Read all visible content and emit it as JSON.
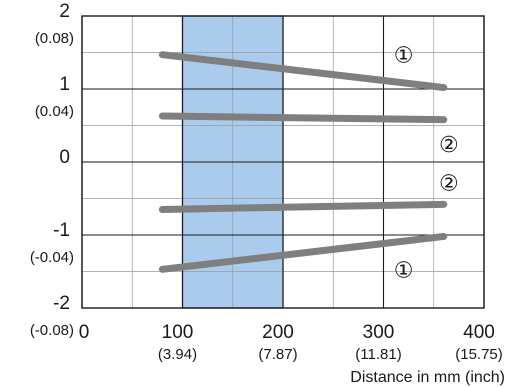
{
  "chart_data": {
    "type": "line",
    "xlabel": "Distance in mm (inch)",
    "ylabel": "",
    "xlim": [
      0,
      400
    ],
    "ylim": [
      -2,
      2
    ],
    "grid": true,
    "x_ticks": [
      {
        "value": 0,
        "label": "0",
        "sub": ""
      },
      {
        "value": 100,
        "label": "100",
        "sub": "(3.94)"
      },
      {
        "value": 200,
        "label": "200",
        "sub": "(7.87)"
      },
      {
        "value": 300,
        "label": "300",
        "sub": "(11.81)"
      },
      {
        "value": 400,
        "label": "400",
        "sub": "(15.75)"
      }
    ],
    "y_ticks": [
      {
        "value": 2,
        "label": "2",
        "sub": "(0.08)"
      },
      {
        "value": 1,
        "label": "1",
        "sub": "(0.04)"
      },
      {
        "value": 0,
        "label": "0",
        "sub": ""
      },
      {
        "value": -1,
        "label": "-1",
        "sub": "(-0.04)"
      },
      {
        "value": -2,
        "label": "-2",
        "sub": "(-0.08)"
      }
    ],
    "highlight_band": {
      "x_start": 100,
      "x_end": 200,
      "color": "#aacbec"
    },
    "series": [
      {
        "label": "①",
        "color": "#7f7f7f",
        "x": [
          80,
          360
        ],
        "y": [
          1.47,
          1.02
        ],
        "label_at": {
          "x": 320,
          "y": 1.47
        }
      },
      {
        "label": "②",
        "color": "#7f7f7f",
        "x": [
          80,
          360
        ],
        "y": [
          0.63,
          0.58
        ],
        "label_at": {
          "x": 365,
          "y": 0.25
        }
      },
      {
        "label": "②",
        "color": "#7f7f7f",
        "x": [
          80,
          360
        ],
        "y": [
          -0.65,
          -0.58
        ],
        "label_at": {
          "x": 365,
          "y": -0.28
        }
      },
      {
        "label": "①",
        "color": "#7f7f7f",
        "x": [
          80,
          360
        ],
        "y": [
          -1.47,
          -1.02
        ],
        "label_at": {
          "x": 320,
          "y": -1.47
        }
      }
    ]
  }
}
